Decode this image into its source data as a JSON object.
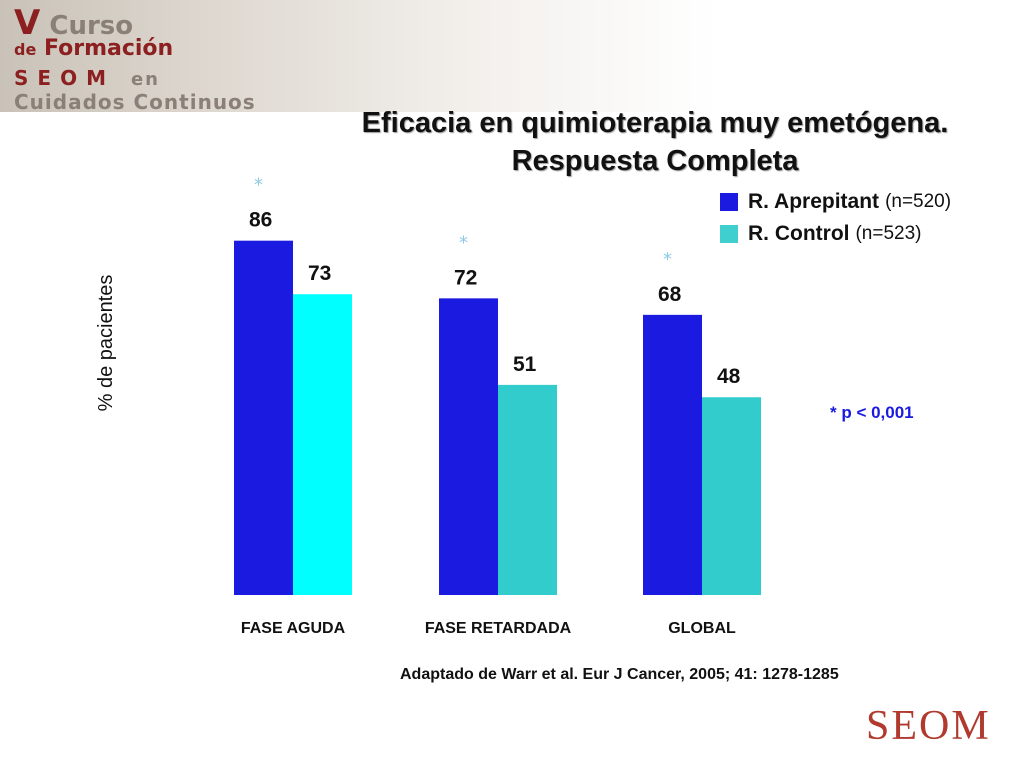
{
  "logo": {
    "line1_v": "V",
    "line1_rest": "Curso",
    "line2_de": "de",
    "line2_rest": "Formación",
    "line3_seom": "SEOM",
    "line3_en": "en",
    "line4": "Cuidados Continuos"
  },
  "title_line1": "Eficacia en quimioterapia muy emetógena.",
  "title_line2": "Respuesta Completa",
  "legend": [
    {
      "name": "R. Aprepitant",
      "n": "(n=520)",
      "color": "#1a1ae0"
    },
    {
      "name": "R. Control",
      "n": "(n=523)",
      "color": "#3fcfcf"
    }
  ],
  "ylabel": "% de pacientes",
  "significance_note": "* p < 0,001",
  "footnote": "Adaptado de Warr et al. Eur J Cancer, 2005; 41: 1278-1285",
  "watermark": "SEOM",
  "chart_data": {
    "type": "bar",
    "categories": [
      "FASE AGUDA",
      "FASE RETARDADA",
      "GLOBAL"
    ],
    "series": [
      {
        "name": "R. Aprepitant",
        "values": [
          86,
          72,
          68
        ],
        "color": "#1a1ae0"
      },
      {
        "name": "R. Control",
        "values": [
          73,
          51,
          48
        ],
        "colors": [
          "#00ffff",
          "#33cccc",
          "#33cccc"
        ]
      }
    ],
    "significance_marks": [
      "*",
      "*",
      "*"
    ],
    "ylabel": "% de pacientes",
    "ylim": [
      0,
      100
    ],
    "grid": false,
    "legend_position": "top-right"
  }
}
